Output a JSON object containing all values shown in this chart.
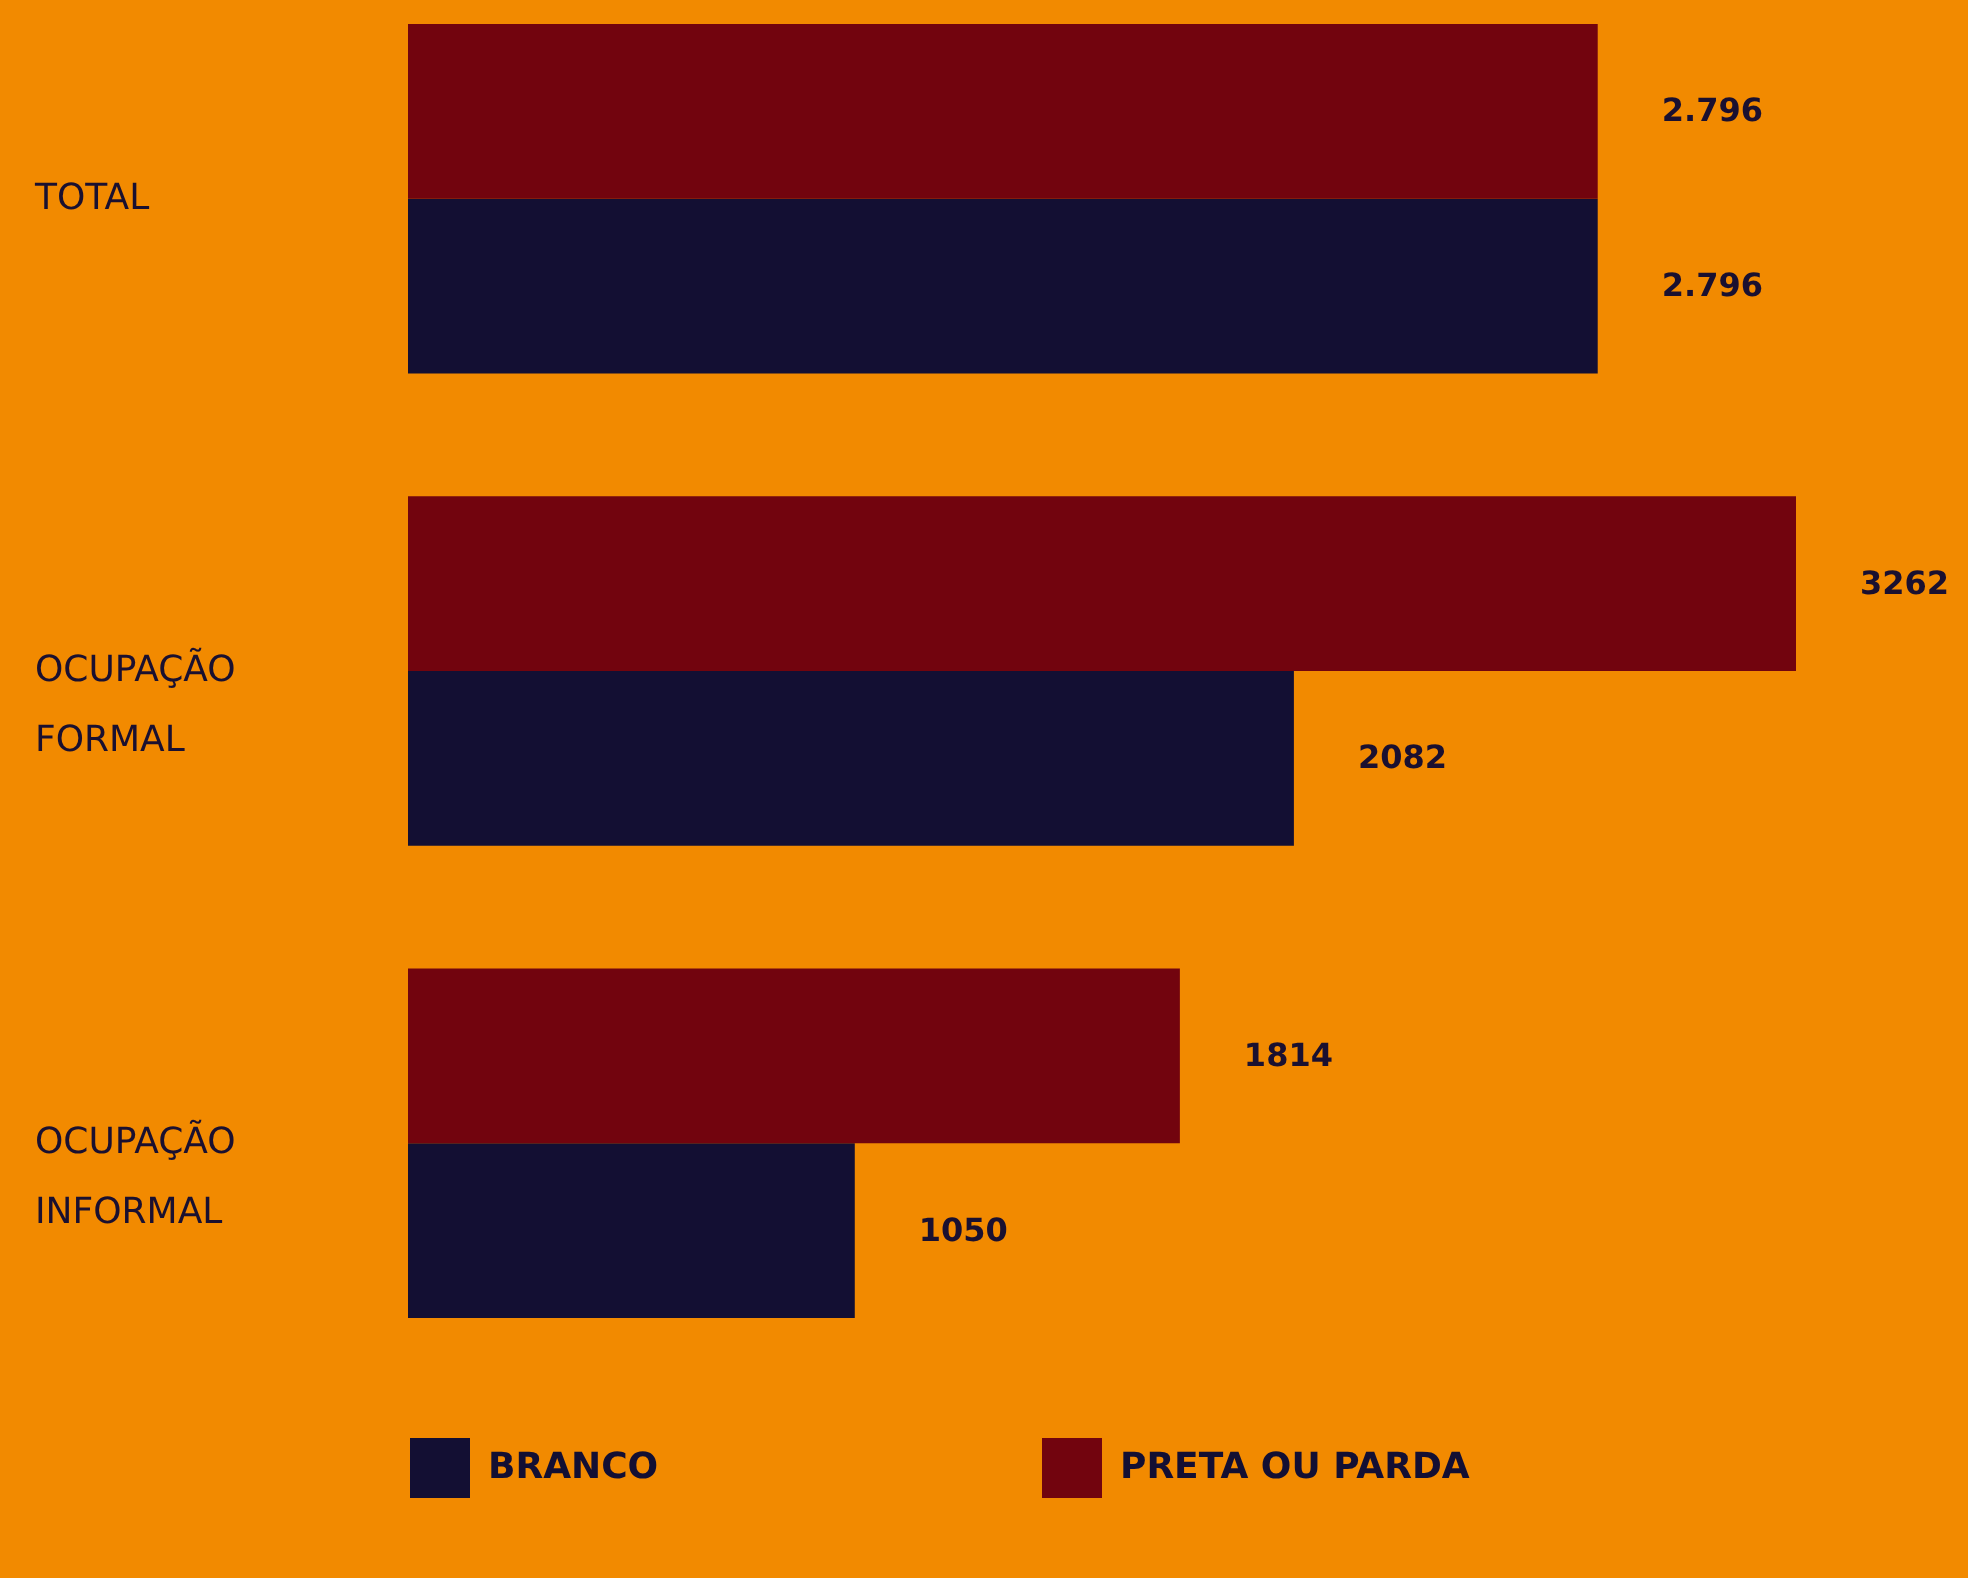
{
  "chart_data": {
    "type": "bar",
    "orientation": "horizontal",
    "categories": [
      "TOTAL",
      "OCUPAÇÃO FORMAL",
      "OCUPAÇÃO INFORMAL"
    ],
    "series": [
      {
        "name": "BRANCO",
        "color": "#130f33",
        "values": [
          2796,
          2082,
          1050
        ],
        "value_labels": [
          "2.796",
          "2082",
          "1050"
        ]
      },
      {
        "name": "PRETA OU PARDA",
        "color": "#72040e",
        "values": [
          2796,
          3262,
          1814
        ],
        "value_labels": [
          "2.796",
          "3262",
          "1814"
        ]
      }
    ],
    "legend": "bottom"
  }
}
